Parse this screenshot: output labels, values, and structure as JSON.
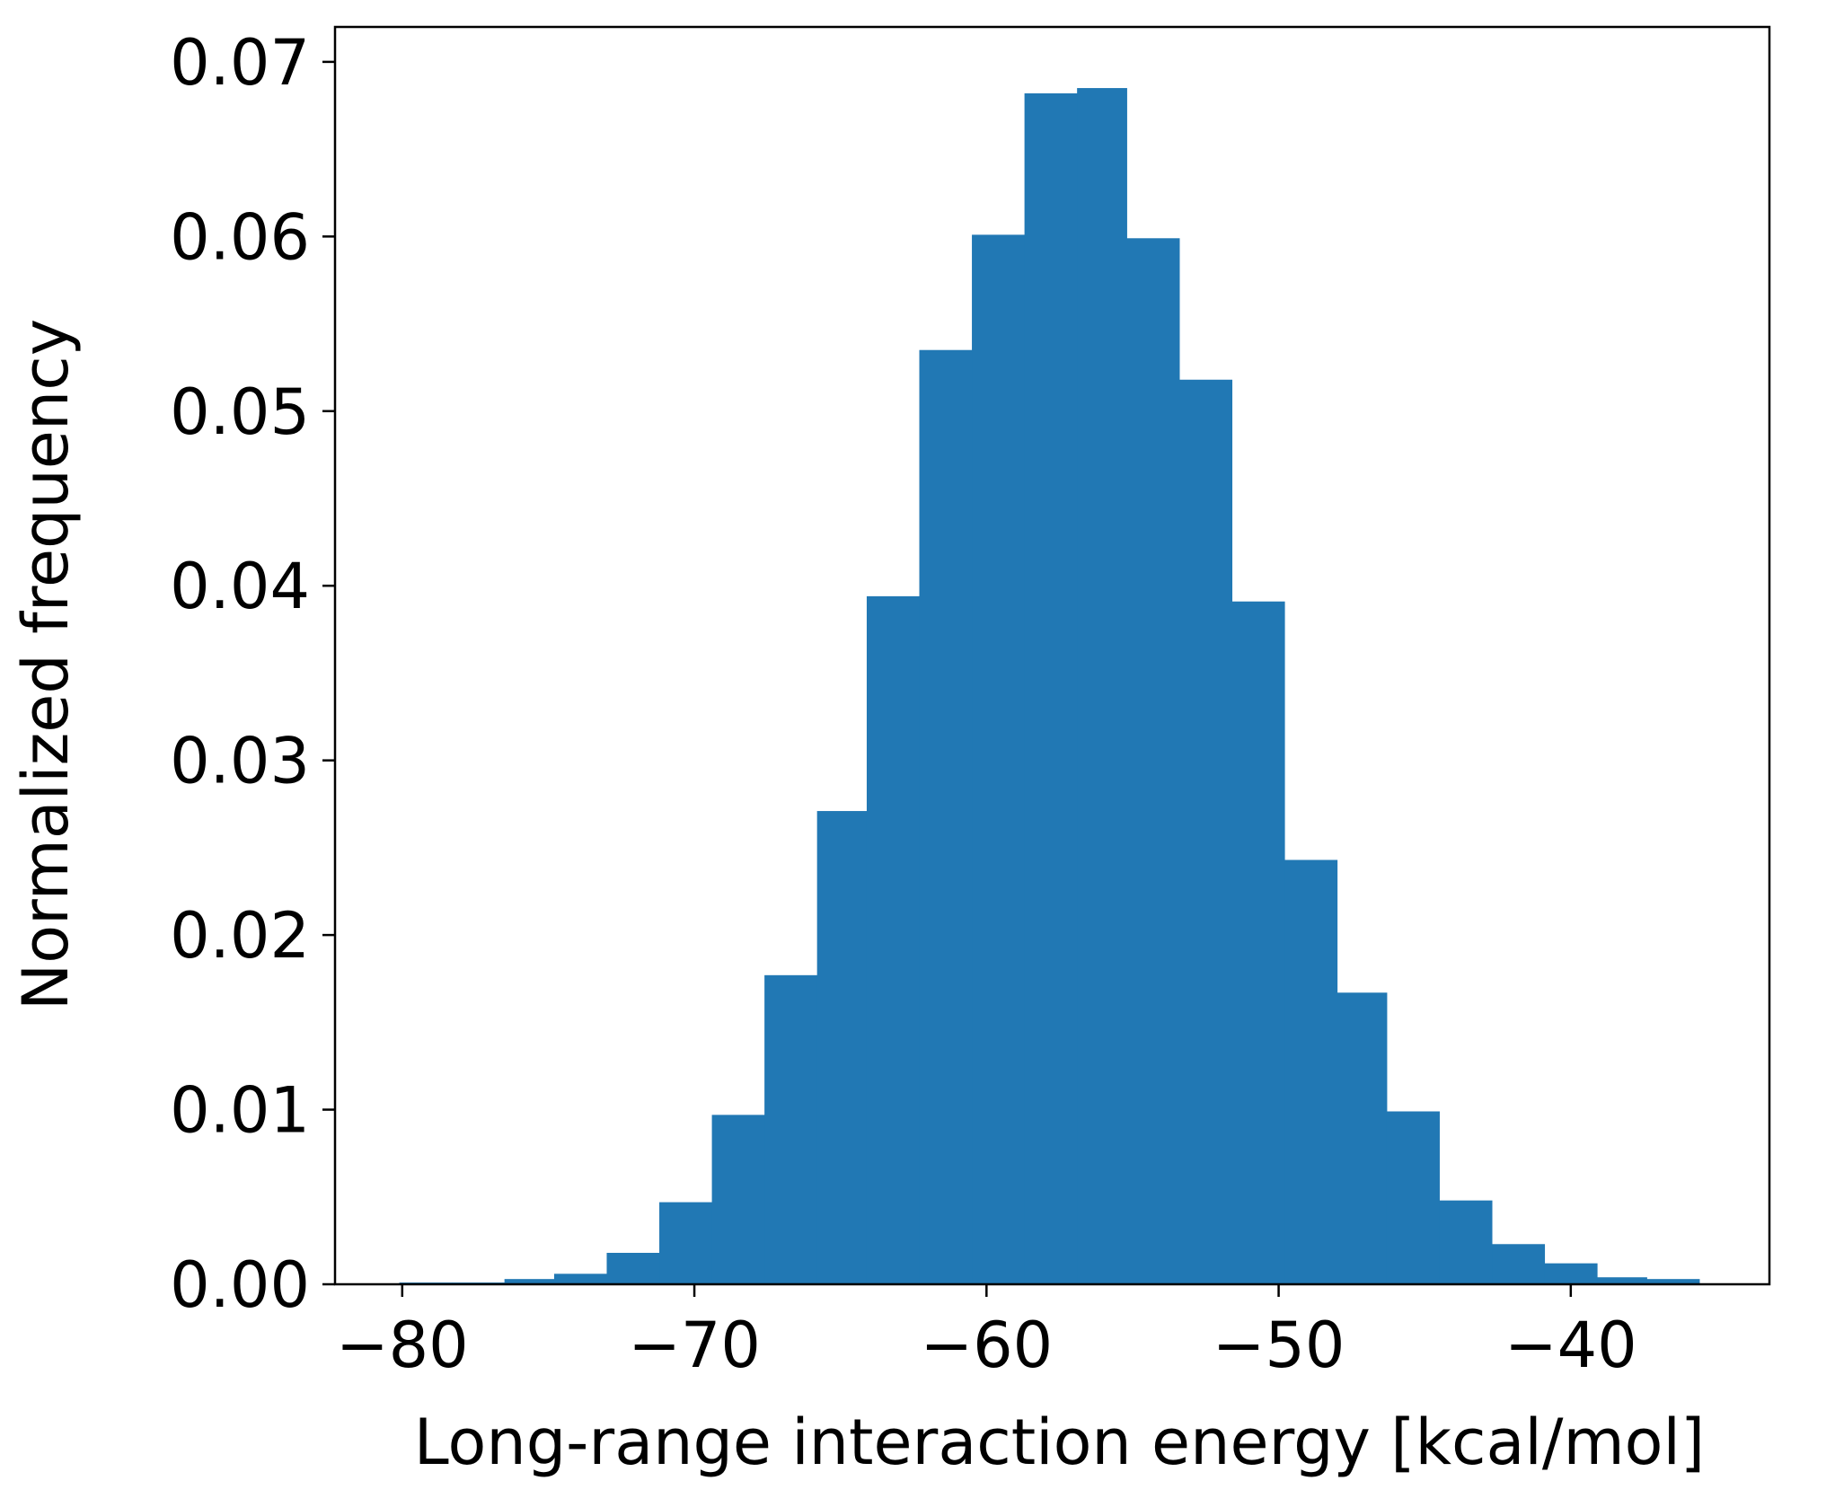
{
  "chart_data": {
    "type": "bar",
    "title": "",
    "xlabel": "Long-range interaction energy [kcal/mol]",
    "ylabel": "Normalized frequency",
    "xlim": [
      -82.3,
      -33.2
    ],
    "ylim": [
      0.0,
      0.072
    ],
    "xticks": [
      -80,
      -70,
      -60,
      -50,
      -40
    ],
    "xtick_labels": [
      "−80",
      "−70",
      "−60",
      "−50",
      "−40"
    ],
    "yticks": [
      0.0,
      0.01,
      0.02,
      0.03,
      0.04,
      0.05,
      0.06,
      0.07
    ],
    "ytick_labels": [
      "0.00",
      "0.01",
      "0.02",
      "0.03",
      "0.04",
      "0.05",
      "0.06",
      "0.07"
    ],
    "grid": false,
    "legend": "none",
    "bar_color": "#2178b4",
    "bins": [
      {
        "x0": -80.1,
        "x1": -78.3,
        "value": 0.0001
      },
      {
        "x0": -78.3,
        "x1": -76.5,
        "value": 0.0001
      },
      {
        "x0": -76.5,
        "x1": -74.8,
        "value": 0.0003
      },
      {
        "x0": -74.8,
        "x1": -73.0,
        "value": 0.0006
      },
      {
        "x0": -73.0,
        "x1": -71.2,
        "value": 0.0018
      },
      {
        "x0": -71.2,
        "x1": -69.4,
        "value": 0.0047
      },
      {
        "x0": -69.4,
        "x1": -67.6,
        "value": 0.0097
      },
      {
        "x0": -67.6,
        "x1": -65.8,
        "value": 0.0177
      },
      {
        "x0": -65.8,
        "x1": -64.1,
        "value": 0.0271
      },
      {
        "x0": -64.1,
        "x1": -62.3,
        "value": 0.0394
      },
      {
        "x0": -62.3,
        "x1": -60.5,
        "value": 0.0535
      },
      {
        "x0": -60.5,
        "x1": -58.7,
        "value": 0.0601
      },
      {
        "x0": -58.7,
        "x1": -56.9,
        "value": 0.0682
      },
      {
        "x0": -56.9,
        "x1": -55.2,
        "value": 0.0685
      },
      {
        "x0": -55.2,
        "x1": -53.4,
        "value": 0.0599
      },
      {
        "x0": -53.4,
        "x1": -51.6,
        "value": 0.0518
      },
      {
        "x0": -51.6,
        "x1": -49.8,
        "value": 0.0391
      },
      {
        "x0": -49.8,
        "x1": -48.0,
        "value": 0.0243
      },
      {
        "x0": -48.0,
        "x1": -46.3,
        "value": 0.0167
      },
      {
        "x0": -46.3,
        "x1": -44.5,
        "value": 0.0099
      },
      {
        "x0": -44.5,
        "x1": -42.7,
        "value": 0.0048
      },
      {
        "x0": -42.7,
        "x1": -40.9,
        "value": 0.0023
      },
      {
        "x0": -40.9,
        "x1": -39.1,
        "value": 0.0012
      },
      {
        "x0": -39.1,
        "x1": -37.4,
        "value": 0.0004
      },
      {
        "x0": -37.4,
        "x1": -35.6,
        "value": 0.0003
      }
    ]
  }
}
